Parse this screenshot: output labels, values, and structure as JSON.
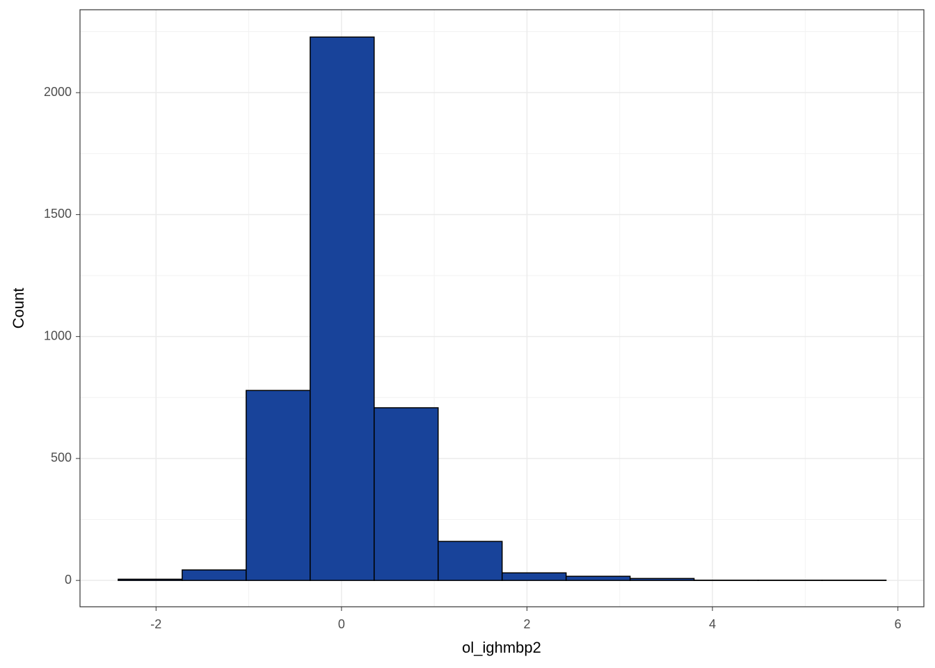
{
  "chart_data": {
    "type": "histogram",
    "x_label": "ol_ighmbp2",
    "y_label": "Count",
    "bins": [
      -2.408,
      -1.718,
      -1.028,
      -0.338,
      0.352,
      1.042,
      1.732,
      2.422,
      3.112,
      3.802,
      4.492,
      5.182,
      5.872
    ],
    "values": [
      5,
      43,
      779,
      2228,
      708,
      160,
      31,
      17,
      8,
      1,
      1,
      1
    ],
    "color": "#18439a",
    "edge_color": "#000000",
    "xlim": [
      -2.82,
      6.28
    ],
    "ylim": [
      -108,
      2340
    ],
    "xticks": [
      -2,
      0,
      2,
      4,
      6
    ],
    "yticks": [
      0,
      500,
      1000,
      1500,
      2000
    ],
    "x_minor_grid": [
      -1,
      1,
      3,
      5
    ],
    "y_minor_grid": [
      250,
      750,
      1250,
      1750,
      2250
    ],
    "grid": true
  }
}
